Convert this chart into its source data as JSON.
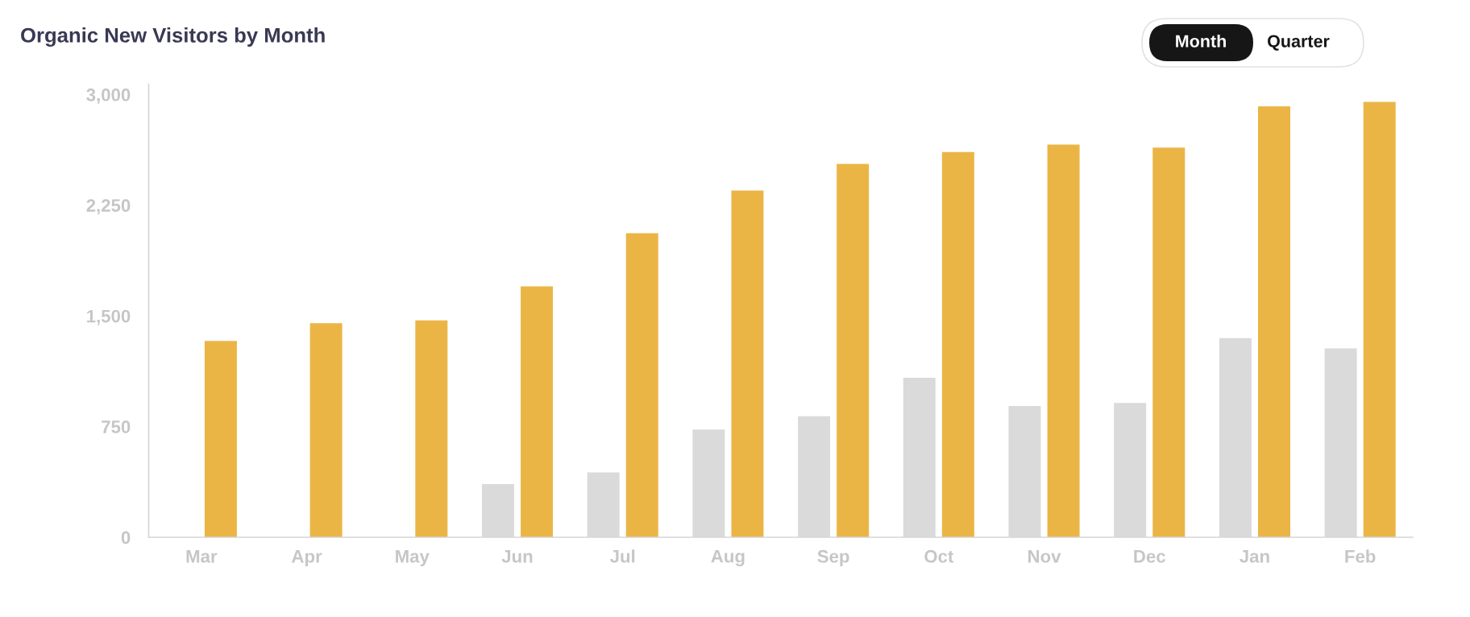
{
  "chart_data": {
    "type": "bar",
    "title": "Organic New Visitors by Month",
    "categories": [
      "Mar",
      "Apr",
      "May",
      "Jun",
      "Jul",
      "Aug",
      "Sep",
      "Oct",
      "Nov",
      "Dec",
      "Jan",
      "Feb"
    ],
    "series": [
      {
        "color": "#dadada",
        "values": [
          null,
          null,
          null,
          360,
          440,
          730,
          820,
          1080,
          890,
          910,
          1350,
          1280
        ]
      },
      {
        "color": "#ebb546",
        "values": [
          1330,
          1450,
          1470,
          1700,
          2060,
          2350,
          2530,
          2610,
          2660,
          2640,
          2920,
          2950
        ]
      }
    ],
    "ylim": [
      0,
      3070
    ],
    "yticks": [
      0,
      750,
      {
        "value": 1500,
        "label": "1,500"
      },
      {
        "value": 2250,
        "label": "2,250"
      },
      {
        "value": 3000,
        "label": "3,000"
      }
    ],
    "annotations": [
      "Month",
      "Quarter"
    ]
  }
}
